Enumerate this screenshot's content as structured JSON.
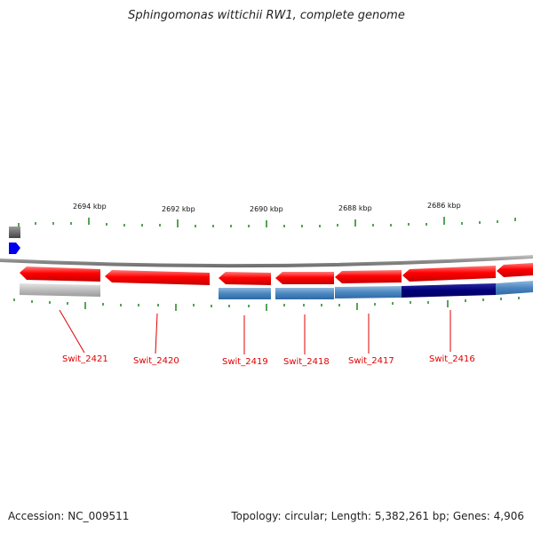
{
  "title": "Sphingomonas wittichii RW1, complete genome",
  "footer": {
    "accession": "Accession: NC_009511",
    "info": "Topology: circular; Length: 5,382,261 bp; Genes: 4,906"
  },
  "scale_labels": [
    "2694 kbp",
    "2692 kbp",
    "2690 kbp",
    "2688 kbp",
    "2686 kbp"
  ],
  "gene_labels": [
    "Swit_2421",
    "Swit_2420",
    "Swit_2419",
    "Swit_2418",
    "Swit_2417",
    "Swit_2416"
  ],
  "colors": {
    "forward_gene": "#e00000",
    "secondary_track_light": "#4a86c0",
    "secondary_track_dark": "#00007a",
    "secondary_track_gray": "#b8b8b8",
    "backbone": "#888888",
    "tick": "#2e8b2e",
    "legend_gray": "#666666",
    "legend_blue": "#0000ee"
  }
}
